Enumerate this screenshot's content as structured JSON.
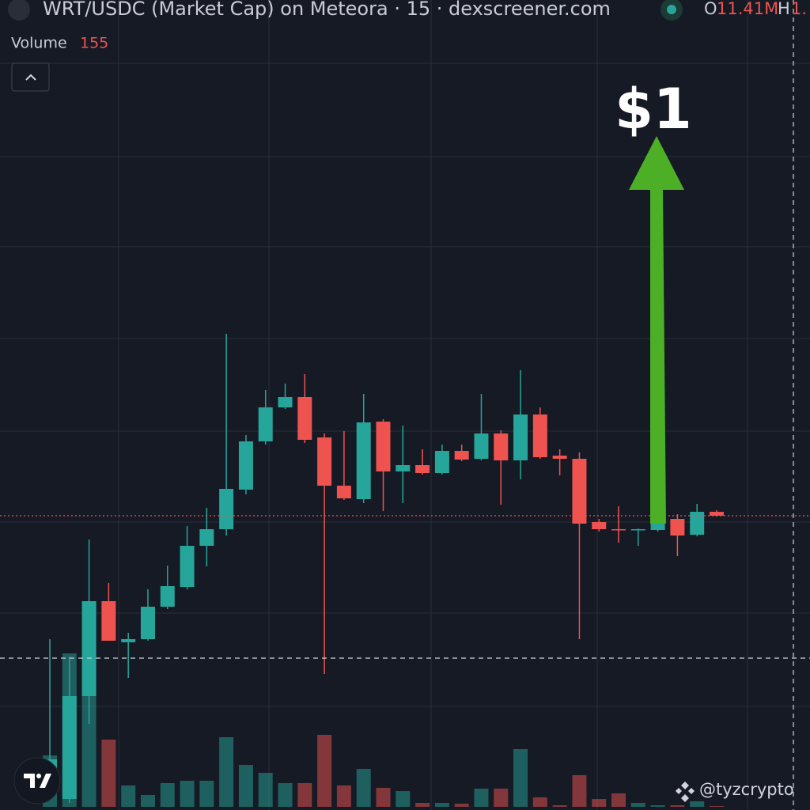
{
  "chart_data": {
    "type": "candlestick",
    "title": "WRT/USDC (Market Cap) on Meteora · 15 · dexscreener.com",
    "ohlc_labels": [
      {
        "key": "O",
        "value": "11.41M"
      },
      {
        "key": "H",
        "value": "1."
      }
    ],
    "volume_title": "Volume",
    "volume_value": 155,
    "annotation": "$1",
    "watermark": "@tyzcrypto",
    "up_color": "#26a69a",
    "down_color": "#ef5350",
    "ylim": [
      0,
      10.24
    ],
    "volume_ylim": [
      0,
      200
    ],
    "open": [
      0.24,
      0.14,
      1.44,
      2.64,
      2.12,
      2.16,
      2.57,
      2.82,
      3.34,
      3.55,
      4.05,
      4.66,
      5.09,
      5.22,
      4.71,
      4.1,
      3.93,
      4.91,
      4.28,
      4.36,
      4.26,
      4.54,
      4.44,
      4.76,
      4.42,
      5.0,
      4.48,
      4.44,
      3.64,
      3.55,
      3.54,
      3.54,
      3.68,
      3.48,
      3.77
    ],
    "high": [
      2.16,
      1.94,
      3.42,
      2.87,
      2.24,
      2.79,
      3.09,
      3.59,
      3.82,
      6.02,
      4.74,
      5.31,
      5.39,
      5.51,
      4.76,
      4.79,
      5.26,
      4.94,
      4.86,
      4.56,
      4.62,
      4.62,
      5.26,
      4.8,
      5.56,
      5.09,
      4.56,
      4.52,
      3.68,
      3.84,
      3.56,
      3.68,
      3.74,
      3.87,
      3.79
    ],
    "low": [
      0.14,
      0.09,
      1.09,
      2.14,
      1.67,
      2.14,
      2.54,
      2.79,
      3.08,
      3.47,
      3.99,
      4.62,
      5.07,
      4.64,
      1.72,
      3.92,
      3.88,
      3.78,
      3.88,
      4.24,
      4.24,
      4.41,
      4.42,
      3.86,
      4.18,
      4.44,
      4.23,
      2.16,
      3.52,
      3.38,
      3.34,
      3.52,
      3.21,
      3.46,
      3.71
    ],
    "close": [
      0.64,
      1.44,
      2.64,
      2.14,
      2.16,
      2.57,
      2.83,
      3.34,
      3.55,
      4.06,
      4.66,
      5.09,
      5.22,
      4.68,
      4.1,
      3.94,
      4.9,
      4.28,
      4.36,
      4.26,
      4.54,
      4.43,
      4.76,
      4.42,
      5.0,
      4.46,
      4.44,
      3.62,
      3.55,
      3.54,
      3.55,
      3.64,
      3.47,
      3.77,
      3.72
    ],
    "volume": [
      65,
      194,
      140,
      85,
      27,
      15,
      30,
      33,
      33,
      88,
      53,
      43,
      30,
      30,
      91,
      27,
      48,
      24,
      20,
      5,
      5,
      4,
      23,
      23,
      73,
      12,
      2,
      40,
      10,
      17,
      5,
      2,
      2,
      7,
      1
    ]
  }
}
